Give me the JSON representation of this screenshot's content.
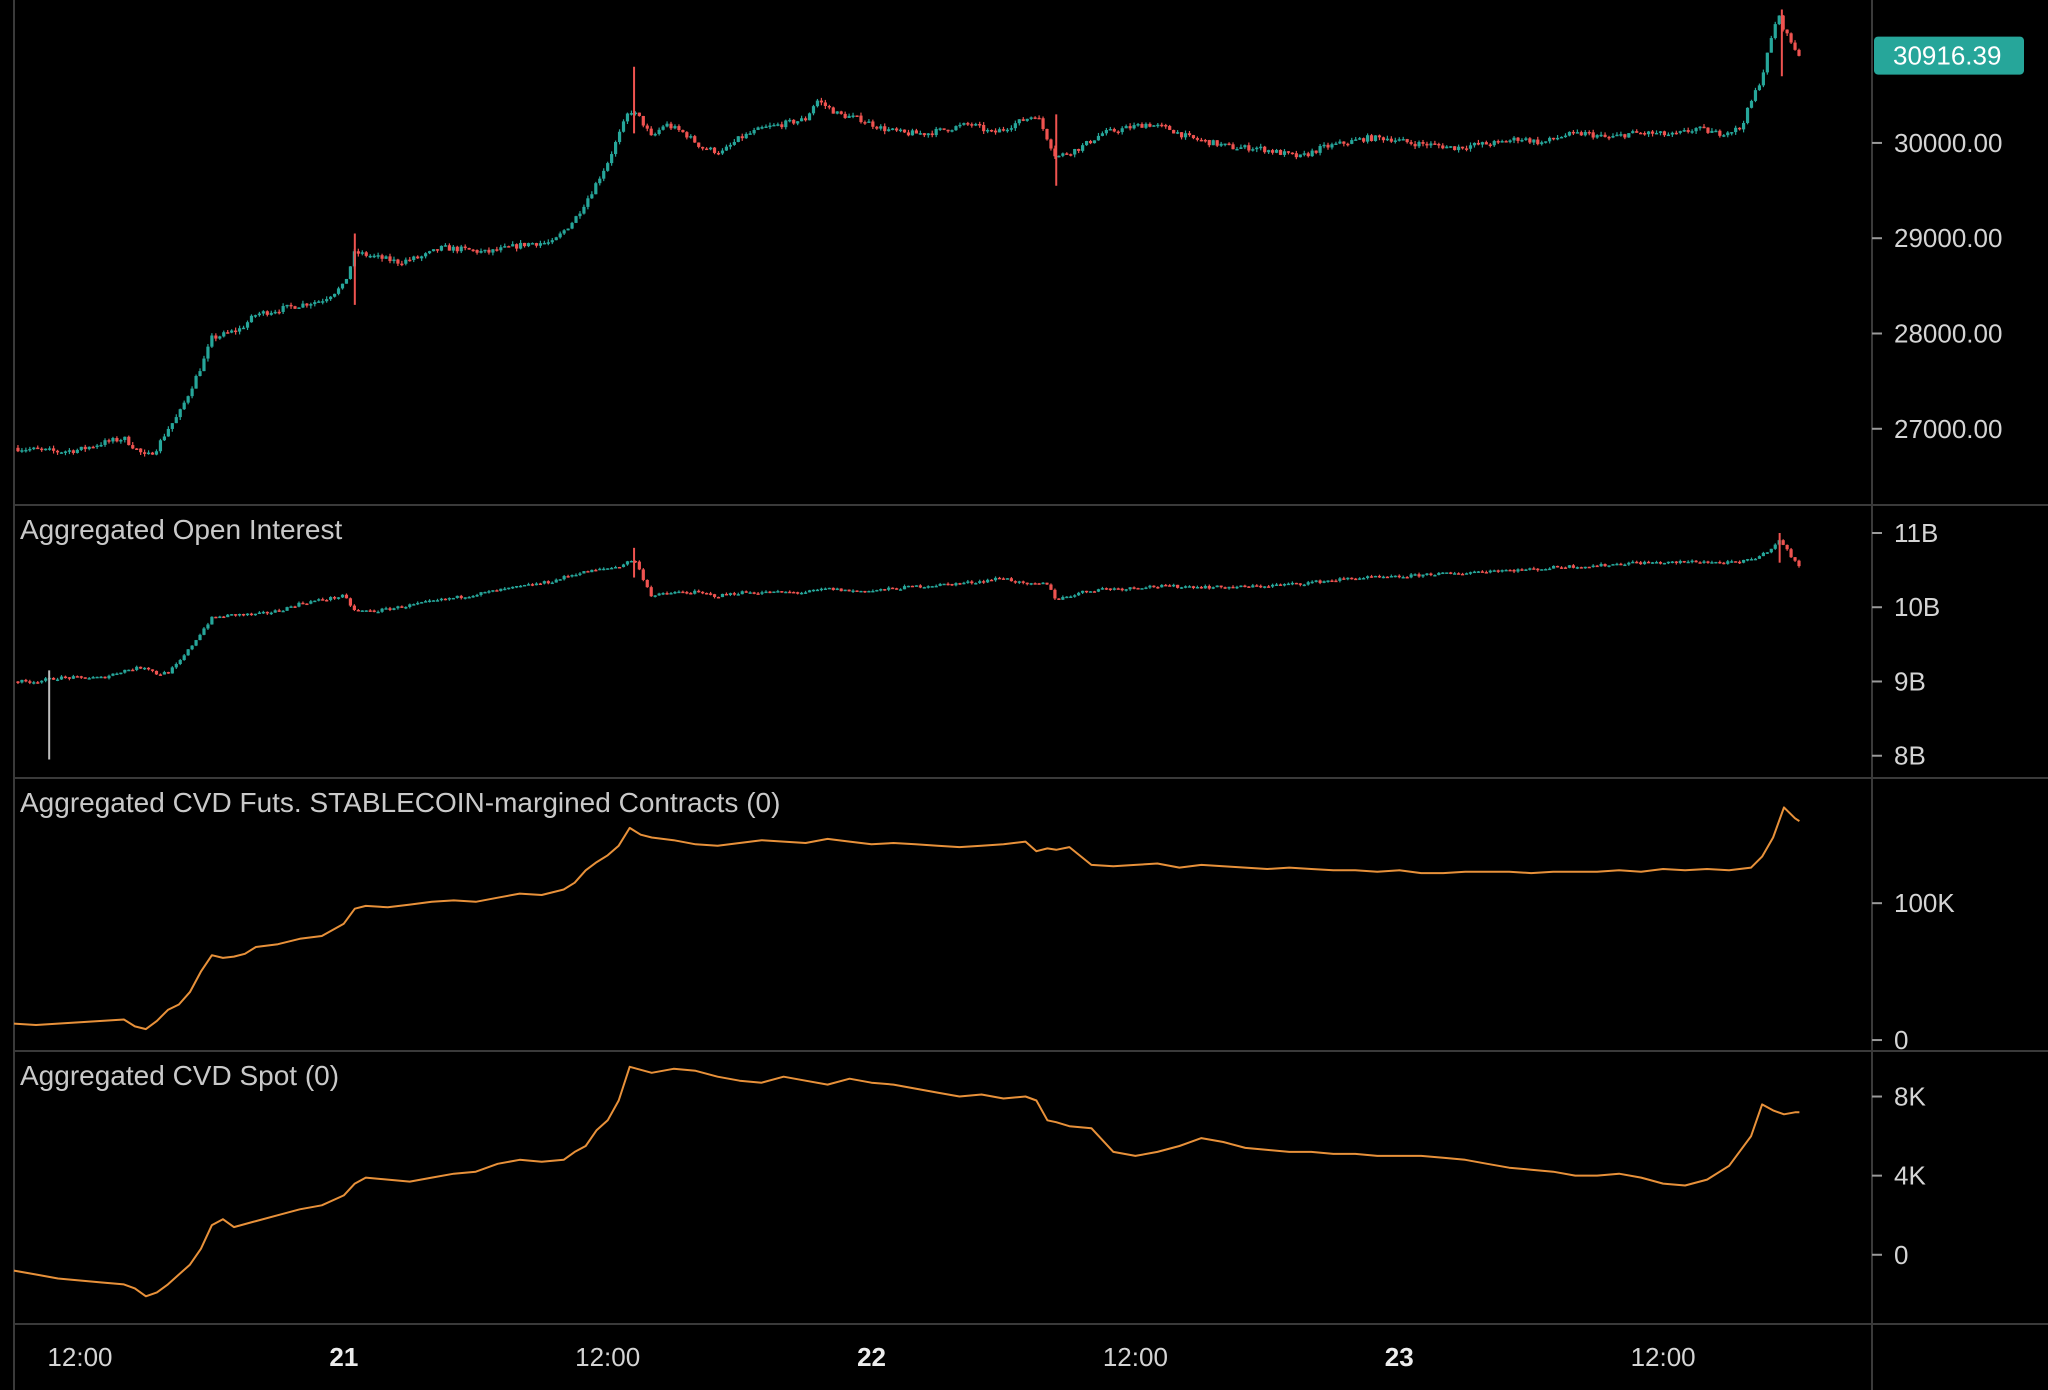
{
  "colors": {
    "background": "#000000",
    "frame": "#1d1d1d",
    "divider": "#3a3a3a",
    "up": "#26a69a",
    "down": "#ef5350",
    "cvd_line": "#e8913a",
    "price_tag": "#26a69a",
    "axis_text": "#d4d4d4"
  },
  "price_tag": {
    "value": 30916.39,
    "label": "30916.39"
  },
  "time_axis": {
    "labels": [
      {
        "text": "12:00",
        "t": 12,
        "bold": false
      },
      {
        "text": "21",
        "t": 24,
        "bold": true
      },
      {
        "text": "12:00",
        "t": 36,
        "bold": false
      },
      {
        "text": "22",
        "t": 48,
        "bold": true
      },
      {
        "text": "12:00",
        "t": 60,
        "bold": false
      },
      {
        "text": "23",
        "t": 72,
        "bold": true
      },
      {
        "text": "12:00",
        "t": 84,
        "bold": false
      }
    ],
    "t_start": 9,
    "t_end": 93.5
  },
  "chart_data": [
    {
      "type": "candlestick",
      "pane": "price",
      "title": "",
      "y_ticks": [
        "30000.00",
        "29000.00",
        "28000.00",
        "27000.00"
      ],
      "y_tick_values": [
        30000,
        29000,
        28000,
        27000
      ],
      "ylim": [
        26200,
        31500
      ],
      "series_path": [
        [
          9,
          26800
        ],
        [
          10,
          26780
        ],
        [
          11,
          26760
        ],
        [
          12,
          26780
        ],
        [
          13,
          26850
        ],
        [
          14,
          26900
        ],
        [
          14.5,
          26800
        ],
        [
          15,
          26700
        ],
        [
          15.5,
          26800
        ],
        [
          16,
          27000
        ],
        [
          16.5,
          27150
        ],
        [
          17,
          27400
        ],
        [
          17.6,
          27700
        ],
        [
          18,
          27950
        ],
        [
          18.7,
          28000
        ],
        [
          19.3,
          28050
        ],
        [
          20,
          28200
        ],
        [
          21,
          28250
        ],
        [
          22,
          28300
        ],
        [
          23,
          28350
        ],
        [
          24,
          28500
        ],
        [
          24.5,
          28850
        ],
        [
          25.5,
          28800
        ],
        [
          26.5,
          28750
        ],
        [
          27.5,
          28800
        ],
        [
          28.5,
          28900
        ],
        [
          29.5,
          28880
        ],
        [
          30.5,
          28850
        ],
        [
          31.5,
          28900
        ],
        [
          32.5,
          28950
        ],
        [
          33.5,
          28950
        ],
        [
          34.5,
          29200
        ],
        [
          35.3,
          29500
        ],
        [
          36,
          29800
        ],
        [
          37,
          30350
        ],
        [
          37.5,
          30250
        ],
        [
          38,
          30050
        ],
        [
          38.6,
          30200
        ],
        [
          39.5,
          30100
        ],
        [
          40.3,
          29950
        ],
        [
          41.2,
          29900
        ],
        [
          42,
          30050
        ],
        [
          43,
          30150
        ],
        [
          44,
          30200
        ],
        [
          45,
          30250
        ],
        [
          45.5,
          30450
        ],
        [
          46.5,
          30300
        ],
        [
          47.5,
          30250
        ],
        [
          48.5,
          30150
        ],
        [
          49.5,
          30100
        ],
        [
          50.5,
          30100
        ],
        [
          51.5,
          30150
        ],
        [
          52.5,
          30200
        ],
        [
          53.5,
          30100
        ],
        [
          54.5,
          30200
        ],
        [
          55.5,
          30300
        ],
        [
          56.4,
          29850
        ],
        [
          57.5,
          29950
        ],
        [
          58.5,
          30100
        ],
        [
          59.5,
          30150
        ],
        [
          60.5,
          30200
        ],
        [
          61.5,
          30150
        ],
        [
          62.5,
          30050
        ],
        [
          63.5,
          30000
        ],
        [
          64.5,
          29950
        ],
        [
          65.5,
          29950
        ],
        [
          66.5,
          29900
        ],
        [
          67.5,
          29850
        ],
        [
          68.5,
          29950
        ],
        [
          69.5,
          30000
        ],
        [
          70.5,
          30050
        ],
        [
          71.5,
          30050
        ],
        [
          72.5,
          30000
        ],
        [
          73.5,
          29980
        ],
        [
          74.5,
          29950
        ],
        [
          75.5,
          29980
        ],
        [
          76.5,
          30000
        ],
        [
          77.5,
          30050
        ],
        [
          78.5,
          30000
        ],
        [
          79.5,
          30080
        ],
        [
          80.5,
          30100
        ],
        [
          81.5,
          30050
        ],
        [
          82.5,
          30100
        ],
        [
          83.5,
          30100
        ],
        [
          84.5,
          30080
        ],
        [
          85.5,
          30150
        ],
        [
          86.5,
          30100
        ],
        [
          87.5,
          30150
        ],
        [
          88.5,
          30700
        ],
        [
          89.2,
          31350
        ],
        [
          89.7,
          31100
        ],
        [
          90.2,
          30916
        ]
      ],
      "spikes": [
        {
          "t": 37.2,
          "high": 30800,
          "low": 30100
        },
        {
          "t": 56.4,
          "high": 30300,
          "low": 29550
        },
        {
          "t": 24.5,
          "high": 29050,
          "low": 28300
        },
        {
          "t": 89.4,
          "high": 31400,
          "low": 30700
        }
      ]
    },
    {
      "type": "candlestick",
      "pane": "open_interest",
      "title": "Aggregated Open Interest",
      "y_ticks": [
        "11B",
        "10B",
        "9B",
        "8B"
      ],
      "y_tick_values": [
        11,
        10,
        9,
        8
      ],
      "ylim": [
        7.7,
        11.35
      ],
      "series_path": [
        [
          9,
          9.0
        ],
        [
          10,
          9.0
        ],
        [
          11,
          9.05
        ],
        [
          12,
          9.05
        ],
        [
          13,
          9.05
        ],
        [
          14,
          9.15
        ],
        [
          15,
          9.2
        ],
        [
          15.5,
          9.1
        ],
        [
          16,
          9.12
        ],
        [
          16.5,
          9.25
        ],
        [
          17,
          9.45
        ],
        [
          17.6,
          9.7
        ],
        [
          18,
          9.85
        ],
        [
          19,
          9.9
        ],
        [
          20,
          9.9
        ],
        [
          21,
          9.95
        ],
        [
          22,
          10.05
        ],
        [
          23,
          10.1
        ],
        [
          24,
          10.15
        ],
        [
          24.5,
          9.95
        ],
        [
          25.5,
          9.95
        ],
        [
          26.5,
          10.0
        ],
        [
          27.5,
          10.05
        ],
        [
          28.5,
          10.1
        ],
        [
          29.5,
          10.15
        ],
        [
          30.5,
          10.2
        ],
        [
          31.5,
          10.25
        ],
        [
          32.5,
          10.3
        ],
        [
          33.5,
          10.35
        ],
        [
          34.5,
          10.45
        ],
        [
          35.5,
          10.5
        ],
        [
          36.5,
          10.55
        ],
        [
          37.2,
          10.65
        ],
        [
          37.6,
          10.4
        ],
        [
          38,
          10.15
        ],
        [
          39,
          10.2
        ],
        [
          40,
          10.2
        ],
        [
          41,
          10.15
        ],
        [
          42,
          10.2
        ],
        [
          43,
          10.2
        ],
        [
          44,
          10.2
        ],
        [
          45,
          10.2
        ],
        [
          46,
          10.25
        ],
        [
          47,
          10.22
        ],
        [
          48,
          10.22
        ],
        [
          49,
          10.25
        ],
        [
          50,
          10.28
        ],
        [
          51,
          10.3
        ],
        [
          52,
          10.32
        ],
        [
          53,
          10.35
        ],
        [
          54,
          10.4
        ],
        [
          55,
          10.3
        ],
        [
          56,
          10.32
        ],
        [
          56.4,
          10.1
        ],
        [
          57.5,
          10.2
        ],
        [
          58.5,
          10.25
        ],
        [
          59.5,
          10.25
        ],
        [
          60.5,
          10.28
        ],
        [
          61.5,
          10.28
        ],
        [
          62.5,
          10.28
        ],
        [
          63.5,
          10.27
        ],
        [
          64.5,
          10.27
        ],
        [
          65.5,
          10.28
        ],
        [
          66.5,
          10.3
        ],
        [
          67.5,
          10.32
        ],
        [
          68.5,
          10.35
        ],
        [
          69.5,
          10.38
        ],
        [
          70.5,
          10.4
        ],
        [
          71.5,
          10.4
        ],
        [
          72.5,
          10.42
        ],
        [
          73.5,
          10.45
        ],
        [
          74.5,
          10.45
        ],
        [
          75.5,
          10.48
        ],
        [
          76.5,
          10.5
        ],
        [
          77.5,
          10.5
        ],
        [
          78.5,
          10.52
        ],
        [
          79.5,
          10.55
        ],
        [
          80.5,
          10.55
        ],
        [
          81.5,
          10.57
        ],
        [
          82.5,
          10.6
        ],
        [
          83.5,
          10.6
        ],
        [
          84.5,
          10.6
        ],
        [
          85.5,
          10.62
        ],
        [
          86.5,
          10.6
        ],
        [
          87.5,
          10.6
        ],
        [
          88.5,
          10.7
        ],
        [
          89.3,
          10.9
        ],
        [
          89.8,
          10.7
        ],
        [
          90.2,
          10.55
        ]
      ],
      "spikes": [
        {
          "t": 10.6,
          "high": 9.15,
          "low": 7.95
        },
        {
          "t": 37.2,
          "high": 10.8,
          "low": 10.4
        },
        {
          "t": 89.3,
          "high": 11.0,
          "low": 10.6
        }
      ]
    },
    {
      "type": "line",
      "pane": "cvd_futures",
      "title": "Aggregated CVD Futs. STABLECOIN-margined Contracts (0)",
      "y_ticks": [
        "100K",
        "0"
      ],
      "y_tick_values": [
        100000,
        0
      ],
      "ylim": [
        -8000,
        190000
      ],
      "x": [
        9,
        10,
        11,
        12,
        13,
        14,
        14.5,
        15,
        15.5,
        16,
        16.5,
        17,
        17.5,
        18,
        18.5,
        19,
        19.5,
        20,
        21,
        22,
        23,
        24,
        24.5,
        25,
        26,
        27,
        28,
        29,
        30,
        31,
        32,
        33,
        34,
        34.5,
        35,
        35.5,
        36,
        36.5,
        37,
        37.5,
        38,
        39,
        40,
        41,
        42,
        43,
        44,
        45,
        46,
        47,
        48,
        49,
        50,
        51,
        52,
        53,
        54,
        55,
        55.5,
        56,
        56.4,
        57,
        58,
        59,
        60,
        61,
        62,
        63,
        64,
        65,
        66,
        67,
        68,
        69,
        70,
        71,
        72,
        73,
        74,
        75,
        76,
        77,
        78,
        79,
        80,
        81,
        82,
        83,
        84,
        85,
        86,
        87,
        88,
        88.5,
        89,
        89.5,
        90,
        90.2
      ],
      "y": [
        12000,
        11000,
        12000,
        13000,
        14000,
        15000,
        10000,
        8000,
        14000,
        22000,
        26000,
        35000,
        50000,
        62000,
        60000,
        61000,
        63000,
        68000,
        70000,
        74000,
        76000,
        85000,
        96000,
        98000,
        97000,
        99000,
        101000,
        102000,
        101000,
        104000,
        107000,
        106000,
        110000,
        115000,
        124000,
        130000,
        135000,
        142000,
        155000,
        150000,
        148000,
        146000,
        143000,
        142000,
        144000,
        146000,
        145000,
        144000,
        147000,
        145000,
        143000,
        144000,
        143000,
        142000,
        141000,
        142000,
        143000,
        145000,
        138000,
        140000,
        139000,
        141000,
        128000,
        127000,
        128000,
        129000,
        126000,
        128000,
        127000,
        126000,
        125000,
        126000,
        125000,
        124000,
        124000,
        123000,
        124000,
        122000,
        122000,
        123000,
        123000,
        123000,
        122000,
        123000,
        123000,
        123000,
        124000,
        123000,
        125000,
        124000,
        125000,
        124000,
        126000,
        134000,
        148000,
        170000,
        162000,
        160000
      ]
    },
    {
      "type": "line",
      "pane": "cvd_spot",
      "title": "Aggregated CVD Spot (0)",
      "y_ticks": [
        "8K",
        "4K",
        "0"
      ],
      "y_tick_values": [
        8000,
        4000,
        0
      ],
      "ylim": [
        -3500,
        10200
      ],
      "x": [
        9,
        10,
        11,
        12,
        13,
        14,
        14.5,
        15,
        15.5,
        16,
        16.5,
        17,
        17.5,
        18,
        18.5,
        19,
        20,
        21,
        22,
        23,
        24,
        24.5,
        25,
        26,
        27,
        28,
        29,
        30,
        31,
        32,
        33,
        34,
        34.5,
        35,
        35.5,
        36,
        36.5,
        37,
        38,
        39,
        40,
        41,
        42,
        43,
        44,
        45,
        46,
        47,
        48,
        49,
        50,
        51,
        52,
        53,
        54,
        55,
        55.5,
        56,
        56.4,
        57,
        58,
        59,
        60,
        61,
        62,
        63,
        64,
        65,
        66,
        67,
        68,
        69,
        70,
        71,
        72,
        73,
        74,
        75,
        76,
        77,
        78,
        79,
        80,
        81,
        82,
        83,
        84,
        85,
        86,
        87,
        88,
        88.5,
        89,
        89.5,
        90,
        90.2
      ],
      "y": [
        -800,
        -1000,
        -1200,
        -1300,
        -1400,
        -1500,
        -1700,
        -2100,
        -1900,
        -1500,
        -1000,
        -500,
        300,
        1500,
        1800,
        1400,
        1700,
        2000,
        2300,
        2500,
        3000,
        3600,
        3900,
        3800,
        3700,
        3900,
        4100,
        4200,
        4600,
        4800,
        4700,
        4800,
        5200,
        5500,
        6300,
        6800,
        7800,
        9500,
        9200,
        9400,
        9300,
        9000,
        8800,
        8700,
        9000,
        8800,
        8600,
        8900,
        8700,
        8600,
        8400,
        8200,
        8000,
        8100,
        7900,
        8000,
        7800,
        6800,
        6700,
        6500,
        6400,
        5200,
        5000,
        5200,
        5500,
        5900,
        5700,
        5400,
        5300,
        5200,
        5200,
        5100,
        5100,
        5000,
        5000,
        5000,
        4900,
        4800,
        4600,
        4400,
        4300,
        4200,
        4000,
        4000,
        4100,
        3900,
        3600,
        3500,
        3800,
        4500,
        6000,
        7600,
        7300,
        7100,
        7200,
        7200
      ]
    }
  ]
}
